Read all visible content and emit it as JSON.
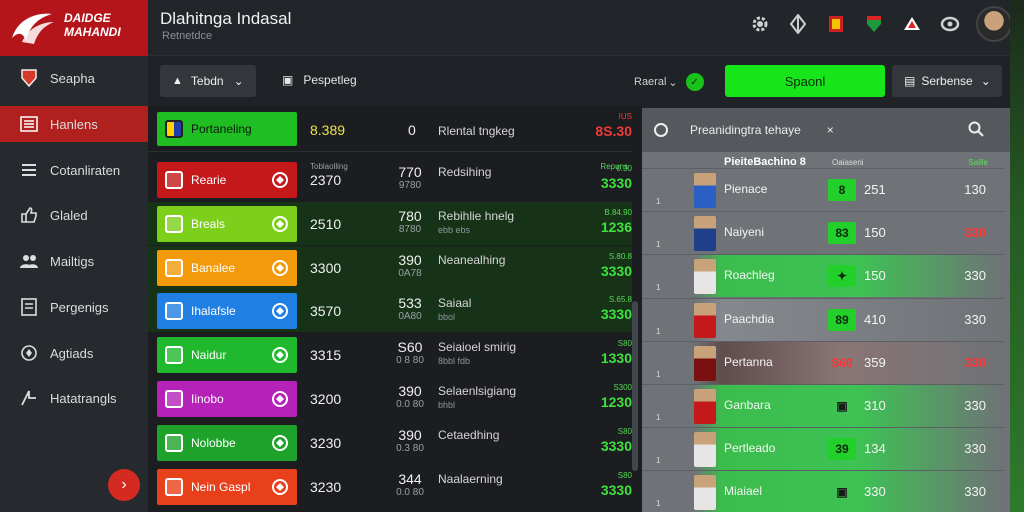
{
  "header": {
    "logo_text": [
      "DAIDGE",
      "MAHANDI"
    ],
    "title": "Dlahitnga Indasal",
    "subtitle": "Retnetdce"
  },
  "sidebar": {
    "items": [
      {
        "label": "Seapha",
        "icon": "shield-icon"
      },
      {
        "label": "Hanlens",
        "icon": "list-icon",
        "active": true
      },
      {
        "label": "Cotanliraten",
        "icon": "menu-icon"
      },
      {
        "label": "Glaled",
        "icon": "thumb-icon"
      },
      {
        "label": "Mailtigs",
        "icon": "people-icon"
      },
      {
        "label": "Pergenigs",
        "icon": "document-icon"
      },
      {
        "label": "Agtiads",
        "icon": "location-icon"
      },
      {
        "label": "Hatatrangls",
        "icon": "export-icon"
      }
    ]
  },
  "toolbar": {
    "dropdown1": "Tebdn",
    "button2": "Pespetleg",
    "label3": "Raeral",
    "primary_button": "Spaonl",
    "dropdown4": "Serbense"
  },
  "main": {
    "top_row": {
      "team": "Portaneling",
      "score": "8.389",
      "mid": "0",
      "name": "Rlental tngkeg",
      "right_val": "8S.30",
      "right_tiny": "IUS"
    },
    "header_cols": {
      "c1": "Toblaolling",
      "c2": "Repuns"
    },
    "rows": [
      {
        "team": "Rearie",
        "color": "#c4181a",
        "score": "2370",
        "big": "770",
        "small": "9780",
        "name": "Redsihing",
        "sub": "",
        "tiny": "0.30",
        "val": "3330",
        "red": false
      },
      {
        "team": "Breals",
        "color": "#7ccf1a",
        "score": "2510",
        "big": "780",
        "small": "8780",
        "name": "Rebihlie hnelg",
        "sub": "ebb ebs",
        "tiny": "B.84.90",
        "val": "1236",
        "red": false
      },
      {
        "team": "Banalee",
        "color": "#f39a0a",
        "score": "3300",
        "big": "390",
        "small": "0A78",
        "name": "Neanealhing",
        "sub": "",
        "tiny": "S.80.8",
        "val": "3330",
        "red": false
      },
      {
        "team": "Ihalafsle",
        "color": "#1f7fe3",
        "score": "3570",
        "big": "533",
        "small": "0A80",
        "name": "Saiaal",
        "sub": "bbol",
        "tiny": "S.65.8",
        "val": "3330",
        "red": false
      },
      {
        "team": "Naidur",
        "color": "#20b82c",
        "score": "3315",
        "big": "S60",
        "small": "0 8 80",
        "name": "Seiaioel smirig",
        "sub": "8bbl fdb",
        "tiny": "S80",
        "val": "1330",
        "red": false
      },
      {
        "team": "Iinobo",
        "color": "#b422b8",
        "score": "3200",
        "big": "390",
        "small": "0.0 80",
        "name": "Selaenlsigiang",
        "sub": "bhbl",
        "tiny": "S300",
        "val": "1230",
        "red": false
      },
      {
        "team": "Nolobbe",
        "color": "#1ea22a",
        "score": "3230",
        "big": "390",
        "small": "0.3 80",
        "name": "Cetaedhing",
        "sub": "",
        "tiny": "S80",
        "val": "3330",
        "red": false
      },
      {
        "team": "Nein Gaspl",
        "color": "#e8401a",
        "score": "3230",
        "big": "344",
        "small": "0.0 80",
        "name": "Naalaerning",
        "sub": "",
        "tiny": "S80",
        "val": "3330",
        "red": false
      }
    ]
  },
  "panel": {
    "title": "Preanidingtra tehaye",
    "sub_head": "PieiteBachino 8",
    "col2": "Oaiaseni",
    "col3": "Saille",
    "rows": [
      {
        "n": "1",
        "name": "Pienace",
        "chip": "8",
        "chip_color": "#23cf2a",
        "v1": "251",
        "v2": "130",
        "red": false,
        "style": "grey",
        "shirt": "#2b5fc4"
      },
      {
        "n": "1",
        "name": "Naiyeni",
        "chip": "83",
        "chip_color": "#23cf2a",
        "v1": "150",
        "v2": "330",
        "red": true,
        "style": "grey",
        "shirt": "#1e3f8a"
      },
      {
        "n": "1",
        "name": "Roachleg",
        "chip": "✦",
        "chip_color": "#23cf2a",
        "v1": "150",
        "v2": "330",
        "red": false,
        "style": "green",
        "shirt": "#e6e6e6"
      },
      {
        "n": "1",
        "name": "Paachdia",
        "chip": "89",
        "chip_color": "#23cf2a",
        "v1": "410",
        "v2": "330",
        "red": false,
        "style": "greyl",
        "shirt": "#c4181a"
      },
      {
        "n": "1",
        "name": "Pertanna",
        "chip": "S60",
        "chip_color": "transparent",
        "v1": "359",
        "v2": "330",
        "red": true,
        "style": "dark",
        "shirt": "#7a1010"
      },
      {
        "n": "1",
        "name": "Ganbara",
        "chip": "▣",
        "chip_color": "transparent",
        "v1": "310",
        "v2": "330",
        "red": false,
        "style": "green",
        "shirt": "#c4181a"
      },
      {
        "n": "1",
        "name": "Pertleado",
        "chip": "39",
        "chip_color": "#23cf2a",
        "v1": "134",
        "v2": "330",
        "red": false,
        "style": "green",
        "shirt": "#e6e6e6"
      },
      {
        "n": "1",
        "name": "Miaiael",
        "chip": "▣",
        "chip_color": "transparent",
        "v1": "330",
        "v2": "330",
        "red": false,
        "style": "green",
        "shirt": "#e6e6e6"
      }
    ]
  },
  "colors": {
    "accent": "#16e51a",
    "brand": "#b3151b",
    "danger": "#f03a3a"
  }
}
